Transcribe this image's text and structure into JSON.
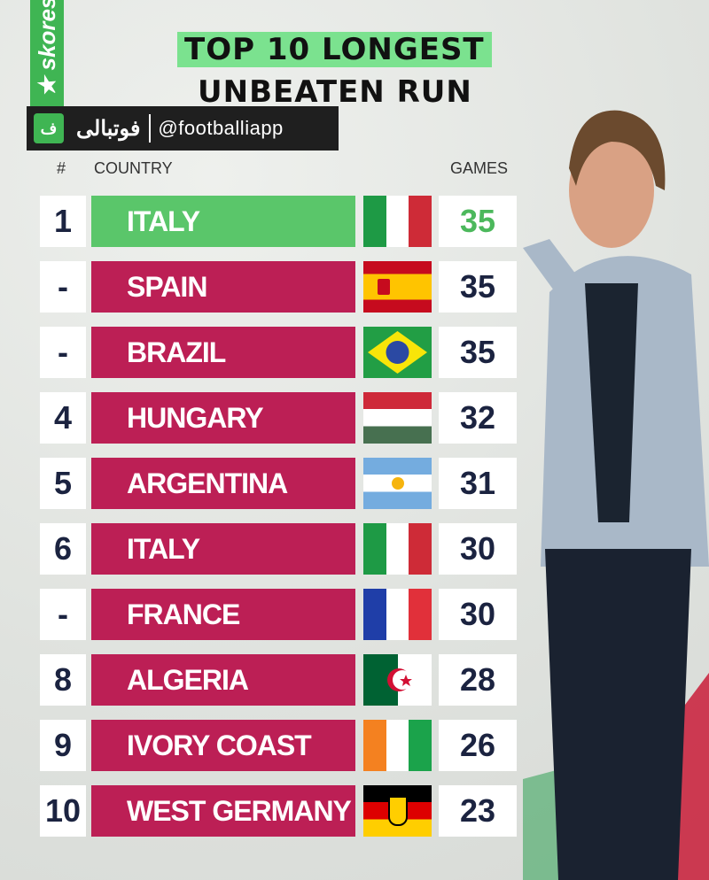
{
  "brand": "★ skores",
  "title": {
    "line1": "TOP 10 LONGEST",
    "line2": "UNBEATEN RUN"
  },
  "watermark": {
    "logo": "ف",
    "arabic": "فوتبالی",
    "handle": "@footballiapp"
  },
  "headers": {
    "rank": "#",
    "country": "COUNTRY",
    "games": "GAMES"
  },
  "colors": {
    "highlight": "#5ac66a",
    "row": "#bc1f55",
    "title_bg": "#7be28f"
  },
  "chart_data": {
    "type": "table",
    "title": "TOP 10 LONGEST UNBEATEN RUN",
    "columns": [
      "#",
      "COUNTRY",
      "GAMES"
    ],
    "rows": [
      {
        "rank": "1",
        "country": "ITALY",
        "flag": "italy",
        "games": "35"
      },
      {
        "rank": "-",
        "country": "SPAIN",
        "flag": "spain",
        "games": "35"
      },
      {
        "rank": "-",
        "country": "BRAZIL",
        "flag": "brazil",
        "games": "35"
      },
      {
        "rank": "4",
        "country": "HUNGARY",
        "flag": "hungary",
        "games": "32"
      },
      {
        "rank": "5",
        "country": "ARGENTINA",
        "flag": "argentina",
        "games": "31"
      },
      {
        "rank": "6",
        "country": "ITALY",
        "flag": "italy",
        "games": "30"
      },
      {
        "rank": "-",
        "country": "FRANCE",
        "flag": "france",
        "games": "30"
      },
      {
        "rank": "8",
        "country": "ALGERIA",
        "flag": "algeria",
        "games": "28"
      },
      {
        "rank": "9",
        "country": "IVORY COAST",
        "flag": "ivory-coast",
        "games": "26"
      },
      {
        "rank": "10",
        "country": "WEST GERMANY",
        "flag": "west-germany",
        "games": "23"
      }
    ]
  }
}
